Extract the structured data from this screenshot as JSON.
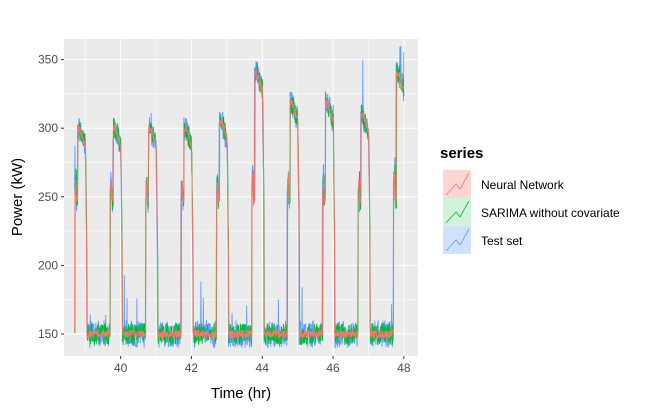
{
  "chart_data": {
    "type": "line",
    "title": "",
    "xlabel": "Time (hr)",
    "ylabel": "Power (kW)",
    "xlim": [
      38.4,
      48.4
    ],
    "ylim": [
      134,
      365
    ],
    "x_ticks": [
      40,
      42,
      44,
      46,
      48
    ],
    "y_ticks": [
      150,
      200,
      250,
      300,
      350
    ],
    "x_tick_labels": [
      "40",
      "42",
      "44",
      "46",
      "48"
    ],
    "y_tick_labels": [
      "150",
      "200",
      "250",
      "300",
      "350"
    ],
    "grid": true,
    "legend": {
      "title": "series",
      "position": "right",
      "entries": [
        "Neural Network",
        "SARIMA without covariate",
        "Test set"
      ]
    },
    "x_range": [
      38.7,
      48.0
    ],
    "day_starts": [
      38.7,
      39.7,
      40.7,
      41.7,
      42.7,
      43.7,
      44.7,
      45.7,
      46.7,
      47.7
    ],
    "day_profile_description_values": {
      "night_level": 150,
      "shoulder_level": 253,
      "peak_levels": [
        300,
        300,
        300,
        300,
        305,
        340,
        318,
        318,
        310,
        340
      ]
    },
    "series": [
      {
        "name": "Test set",
        "color": "#619CFF"
      },
      {
        "name": "SARIMA without covariate",
        "color": "#00BA38"
      },
      {
        "name": "Neural Network",
        "color": "#F8766D"
      }
    ]
  }
}
